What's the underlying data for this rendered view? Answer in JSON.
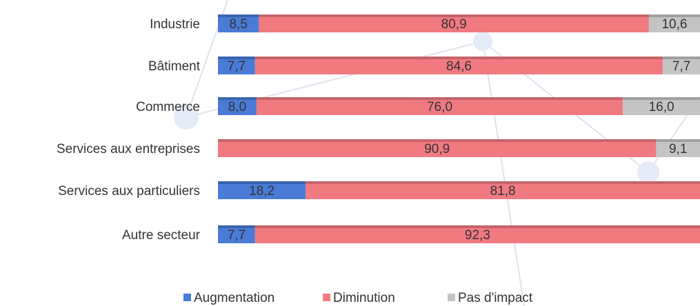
{
  "chart_data": {
    "type": "stacked-bar-horizontal",
    "categories": [
      "Industrie",
      "Bâtiment",
      "Commerce",
      "Services aux entreprises",
      "Services aux particuliers",
      "Autre secteur"
    ],
    "series": [
      {
        "name": "Augmentation",
        "color": "#4a7bd6",
        "values": [
          8.5,
          7.7,
          8.0,
          0,
          18.2,
          7.7
        ],
        "value_labels": [
          "8,5",
          "7,7",
          "8,0",
          null,
          "18,2",
          "7,7"
        ]
      },
      {
        "name": "Diminution",
        "color": "#f07a80",
        "values": [
          80.9,
          84.6,
          76.0,
          90.9,
          81.8,
          92.3
        ],
        "value_labels": [
          "80,9",
          "84,6",
          "76,0",
          "90,9",
          "81,8",
          "92,3"
        ]
      },
      {
        "name": "Pas d'impact",
        "color": "#c4c4c4",
        "values": [
          10.6,
          7.7,
          16.0,
          9.1,
          0,
          0
        ],
        "value_labels": [
          "10,6",
          "7,7",
          "16,0",
          "9,1",
          null,
          null
        ]
      }
    ],
    "xlim": [
      0,
      100
    ],
    "legend": "bottom"
  }
}
